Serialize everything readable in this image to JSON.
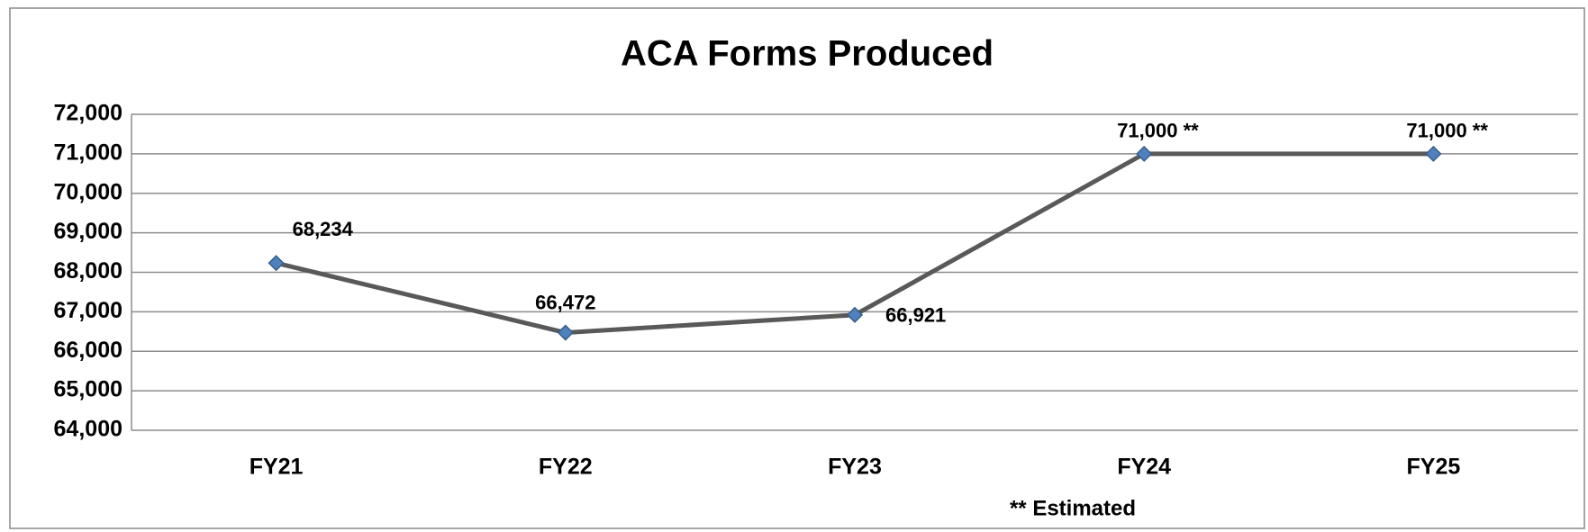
{
  "chart_data": {
    "type": "line",
    "title": "ACA Forms Produced",
    "categories": [
      "FY21",
      "FY22",
      "FY23",
      "FY24",
      "FY25"
    ],
    "series": [
      {
        "name": "ACA Forms Produced",
        "color": "#595959",
        "marker_color": "#4f81bd",
        "values": [
          68234,
          66472,
          66921,
          71000,
          71000
        ],
        "value_labels": [
          "68,234",
          "66,472",
          "66,921",
          "71,000 **",
          "71,000 **"
        ]
      }
    ],
    "ylim": [
      64000,
      72000
    ],
    "yticks": [
      {
        "value": 64000,
        "label": "64,000"
      },
      {
        "value": 65000,
        "label": "65,000"
      },
      {
        "value": 66000,
        "label": "66,000"
      },
      {
        "value": 67000,
        "label": "67,000"
      },
      {
        "value": 68000,
        "label": "68,000"
      },
      {
        "value": 69000,
        "label": "69,000"
      },
      {
        "value": 70000,
        "label": "70,000"
      },
      {
        "value": 71000,
        "label": "71,000"
      },
      {
        "value": 72000,
        "label": "72,000"
      }
    ],
    "grid": true,
    "annotation": "** Estimated"
  }
}
